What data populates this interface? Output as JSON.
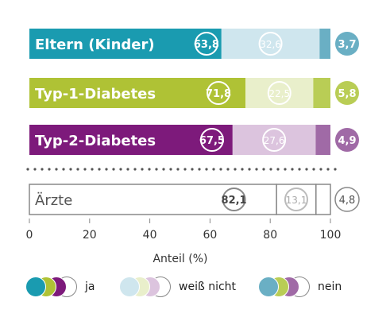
{
  "chart_data": {
    "type": "bar",
    "orientation": "horizontal",
    "stacked": true,
    "categories": [
      "Eltern (Kinder)",
      "Typ-1-Diabetes",
      "Typ-2-Diabetes",
      "Ärzte"
    ],
    "series": [
      {
        "name": "ja",
        "values": [
          63.8,
          71.8,
          67.5,
          82.1
        ],
        "labels": [
          "63,8",
          "71,8",
          "67,5",
          "82,1"
        ]
      },
      {
        "name": "weiß nicht",
        "values": [
          32.6,
          22.5,
          27.6,
          13.1
        ],
        "labels": [
          "32,6",
          "22,5",
          "27,6",
          "13,1"
        ]
      },
      {
        "name": "nein",
        "values": [
          3.7,
          5.8,
          4.9,
          4.8
        ],
        "labels": [
          "3,7",
          "5,8",
          "4,9",
          "4,8"
        ]
      }
    ],
    "colors": {
      "ja": [
        "#1a9bb0",
        "#afc235",
        "#7d1a7b",
        "#ffffff"
      ],
      "weiss_nicht": [
        "#cfe6ee",
        "#e9efcb",
        "#dcc4de",
        "#ffffff"
      ],
      "nein": [
        "#6aafc4",
        "#b9cd55",
        "#a06aa6",
        "#ffffff"
      ],
      "outline": "#888888",
      "dotted_separator": "#555555"
    },
    "xlabel": "Anteil (%)",
    "xlim": [
      0,
      100
    ],
    "xticks": [
      0,
      20,
      40,
      60,
      80,
      100
    ],
    "grid": false,
    "legend_position": "bottom"
  }
}
